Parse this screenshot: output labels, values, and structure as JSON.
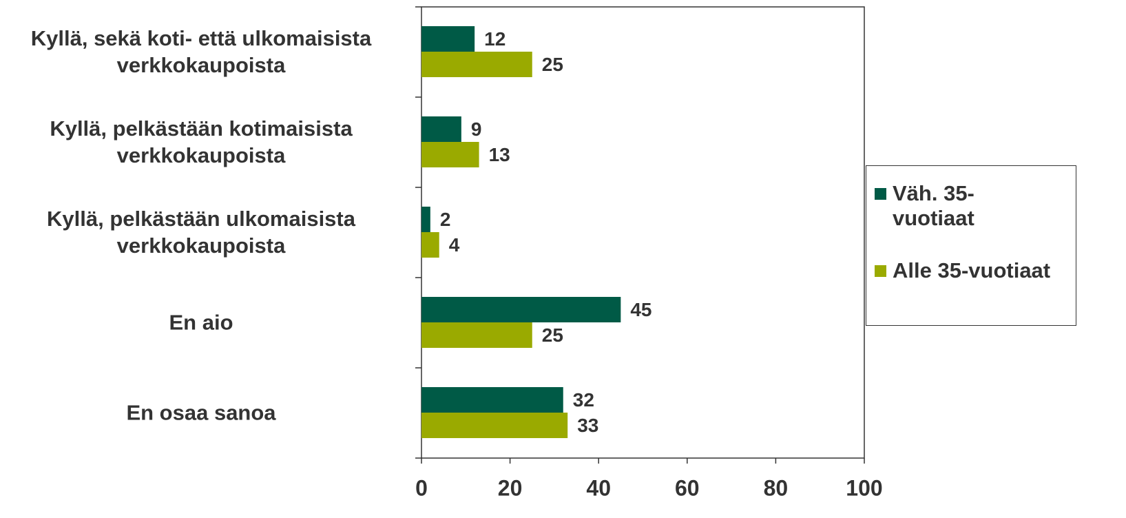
{
  "chart_data": {
    "type": "bar",
    "orientation": "horizontal",
    "categories": [
      "Kyllä, sekä koti- että ulkomaisista verkkokaupoista",
      "Kyllä, pelkästään kotimaisista verkkokaupoista",
      "Kyllä, pelkästään ulkomaisista verkkokaupoista",
      "En aio",
      "En osaa sanoa"
    ],
    "series": [
      {
        "name": "Väh. 35-vuotiaat",
        "color": "#005a46",
        "values": [
          12,
          9,
          2,
          45,
          32
        ]
      },
      {
        "name": "Alle 35-vuotiaat",
        "color": "#9aaa00",
        "values": [
          25,
          13,
          4,
          25,
          33
        ]
      }
    ],
    "xlim": [
      0,
      100
    ],
    "xticks": [
      0,
      20,
      40,
      60,
      80,
      100
    ],
    "legend": "right"
  }
}
